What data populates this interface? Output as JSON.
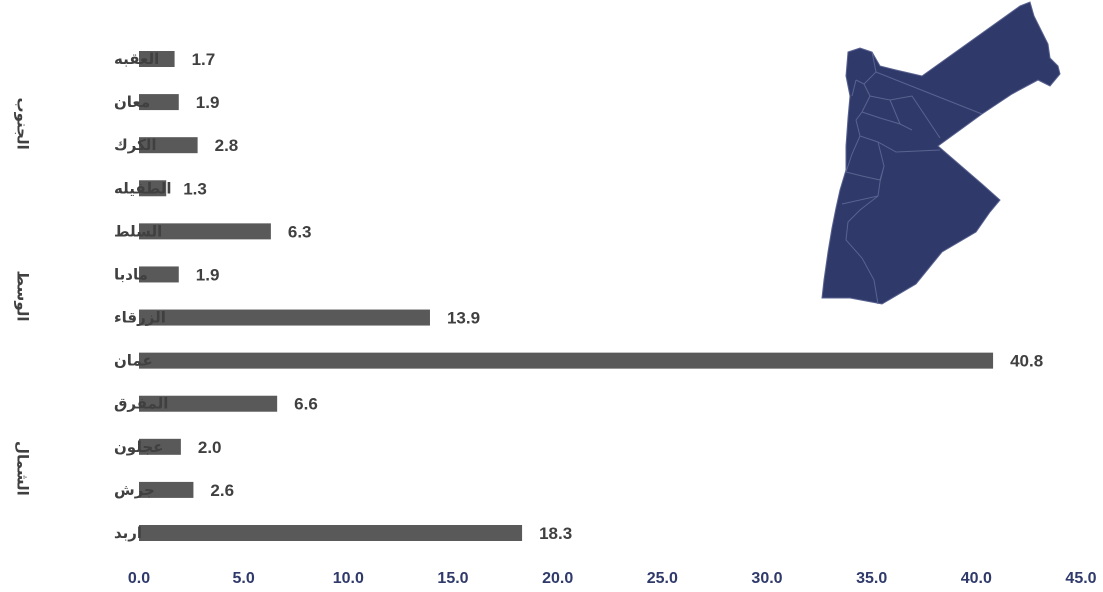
{
  "chart_data": {
    "type": "bar",
    "orientation": "horizontal",
    "categories": [
      "اربد",
      "جرش",
      "عجلون",
      "المفرق",
      "عمان",
      "الزرقاء",
      "مادبا",
      "السلط",
      "الطفيله",
      "الكرك",
      "معان",
      "العقبه"
    ],
    "values": [
      18.3,
      2.6,
      2.0,
      6.6,
      40.8,
      13.9,
      1.9,
      6.3,
      1.3,
      2.8,
      1.9,
      1.7
    ],
    "value_labels": [
      "18.3",
      "2.6",
      "2.0",
      "6.6",
      "40.8",
      "13.9",
      "1.9",
      "6.3",
      "1.3",
      "2.8",
      "1.9",
      "1.7"
    ],
    "groups": [
      {
        "label": "الشمال",
        "categories": [
          "اربد",
          "جرش",
          "عجلون",
          "المفرق"
        ]
      },
      {
        "label": "الوسط",
        "categories": [
          "عمان",
          "الزرقاء",
          "مادبا",
          "السلط"
        ]
      },
      {
        "label": "الجنوب",
        "categories": [
          "الطفيله",
          "الكرك",
          "معان",
          "العقبه"
        ]
      }
    ],
    "x_ticks": [
      "0.0",
      "5.0",
      "10.0",
      "15.0",
      "20.0",
      "25.0",
      "30.0",
      "35.0",
      "40.0",
      "45.0"
    ],
    "xlim": [
      0,
      45
    ],
    "grid": false,
    "title": "",
    "xlabel": "",
    "ylabel": "",
    "colors": {
      "bar": "#595959",
      "value_text": "#404040",
      "tick_text": "#2f3a6b",
      "map_fill": "#2f3a6b",
      "map_border": "#5a6390"
    },
    "decoration_icon": "jordan-map-icon"
  }
}
